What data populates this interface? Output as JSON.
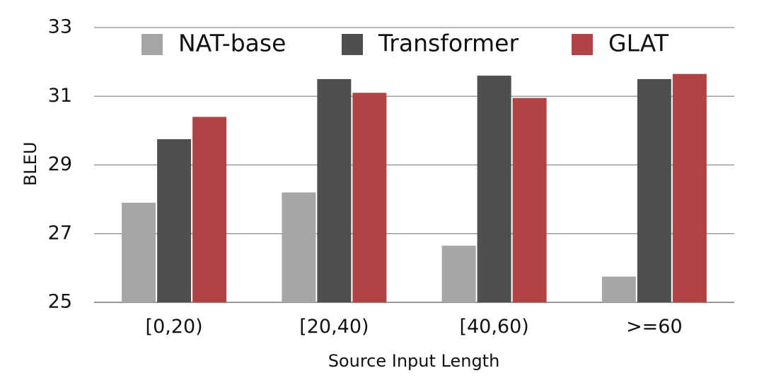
{
  "chart_data": {
    "type": "bar",
    "categories": [
      "[0,20)",
      "[20,40)",
      "[40,60)",
      ">=60"
    ],
    "series": [
      {
        "name": "NAT-base",
        "color": "#a6a6a6",
        "values": [
          27.9,
          28.2,
          26.65,
          25.75
        ]
      },
      {
        "name": "Transformer",
        "color": "#4f4f4f",
        "values": [
          29.75,
          31.5,
          31.6,
          31.5
        ]
      },
      {
        "name": "GLAT",
        "color": "#b04444",
        "values": [
          30.4,
          31.1,
          30.95,
          31.65
        ]
      }
    ],
    "title": "",
    "xlabel": "Source Input Length",
    "ylabel": "BLEU",
    "ylim": [
      25,
      33
    ],
    "yticks": [
      25,
      27,
      29,
      31,
      33
    ],
    "grid": true,
    "legend": "top"
  }
}
